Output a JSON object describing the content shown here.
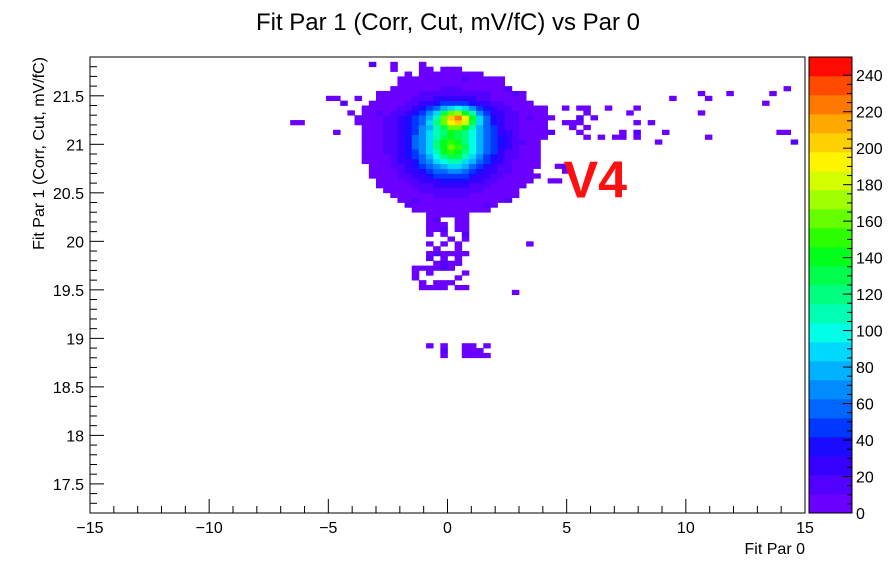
{
  "chart_data": {
    "type": "heatmap",
    "title": "Fit Par 1 (Corr, Cut, mV/fC) vs Par 0",
    "xlabel": "Fit Par 0",
    "ylabel": "Fit Par 1 (Corr, Cut, mV/fC)",
    "xlim": [
      -15,
      15
    ],
    "ylim": [
      17.2,
      21.9
    ],
    "x_bin_width": 0.3,
    "y_bin_width": 0.05,
    "x_tick_labels": [
      "−15",
      "−10",
      "−5",
      "0",
      "5",
      "10",
      "15"
    ],
    "x_tick_values": [
      -15,
      -10,
      -5,
      0,
      5,
      10,
      15
    ],
    "y_tick_labels": [
      "17.5",
      "18",
      "18.5",
      "19",
      "19.5",
      "20",
      "20.5",
      "21",
      "21.5"
    ],
    "y_tick_values": [
      17.5,
      18,
      18.5,
      19,
      19.5,
      20,
      20.5,
      21,
      21.5
    ],
    "z_range": [
      0,
      250
    ],
    "colorbar_tick_labels": [
      "0",
      "20",
      "40",
      "60",
      "80",
      "100",
      "120",
      "140",
      "160",
      "180",
      "200",
      "220",
      "240"
    ],
    "colorbar_tick_values": [
      0,
      20,
      40,
      60,
      80,
      100,
      120,
      140,
      160,
      180,
      200,
      220,
      240
    ],
    "colorbar_levels": [
      "#6a00ff",
      "#5200ff",
      "#3600ff",
      "#1a0aff",
      "#0038ff",
      "#0066ff",
      "#008cff",
      "#00b2ff",
      "#00d8ff",
      "#00ffe6",
      "#00ffb2",
      "#00ff80",
      "#00ff4c",
      "#00ff1a",
      "#2cff00",
      "#66ff00",
      "#a0ff00",
      "#d4ff00",
      "#fff400",
      "#ffd000",
      "#ffa800",
      "#ff7800",
      "#ff4a00",
      "#ff0a00"
    ],
    "annotation": {
      "text": "V4",
      "x": 6.2,
      "y": 20.65,
      "color": "#ff1010"
    },
    "grid": false,
    "clusters": [
      {
        "cx": 0.2,
        "cy": 21.02,
        "sx": 1.3,
        "sy": 0.26,
        "peak": 110
      },
      {
        "cx": 0.4,
        "cy": 21.27,
        "sx": 0.55,
        "sy": 0.07,
        "peak": 140
      },
      {
        "cx": 0.2,
        "cy": 20.95,
        "sx": 0.5,
        "sy": 0.12,
        "peak": 50
      },
      {
        "cx": 0.3,
        "cy": 21.28,
        "sx": 1.8,
        "sy": 0.09,
        "peak": 12
      }
    ],
    "sparse_regions": [
      {
        "x": [
          -3.0,
          3.2
        ],
        "y": [
          20.6,
          21.55
        ],
        "density": 0.75
      },
      {
        "x": [
          -2.0,
          2.3
        ],
        "y": [
          21.55,
          21.75
        ],
        "density": 0.45
      },
      {
        "x": [
          -3.5,
          0.5
        ],
        "y": [
          21.75,
          21.9
        ],
        "density": 0.22
      },
      {
        "x": [
          3.2,
          8.2
        ],
        "y": [
          21.05,
          21.42
        ],
        "density": 0.35
      },
      {
        "x": [
          3.5,
          5.2
        ],
        "y": [
          20.6,
          20.8
        ],
        "density": 0.35
      },
      {
        "x": [
          -1.8,
          1.0
        ],
        "y": [
          20.35,
          20.6
        ],
        "density": 0.45
      },
      {
        "x": [
          -0.8,
          0.9
        ],
        "y": [
          19.7,
          20.35
        ],
        "density": 0.6
      },
      {
        "x": [
          -1.5,
          1.0
        ],
        "y": [
          19.5,
          19.75
        ],
        "density": 0.45
      },
      {
        "x": [
          -1.0,
          2.2
        ],
        "y": [
          18.8,
          18.95
        ],
        "density": 0.5
      },
      {
        "x": [
          -7.0,
          -3.5
        ],
        "y": [
          21.1,
          21.55
        ],
        "density": 0.09
      },
      {
        "x": [
          8.5,
          15.0
        ],
        "y": [
          21.0,
          21.58
        ],
        "density": 0.05
      }
    ],
    "isolated_bins": [
      [
        2.7,
        19.45
      ],
      [
        3.3,
        19.95
      ],
      [
        -3.0,
        21.1
      ],
      [
        13.8,
        21.1
      ],
      [
        14.3,
        21.15
      ],
      [
        11.8,
        21.5
      ],
      [
        10.7,
        21.5
      ]
    ]
  }
}
